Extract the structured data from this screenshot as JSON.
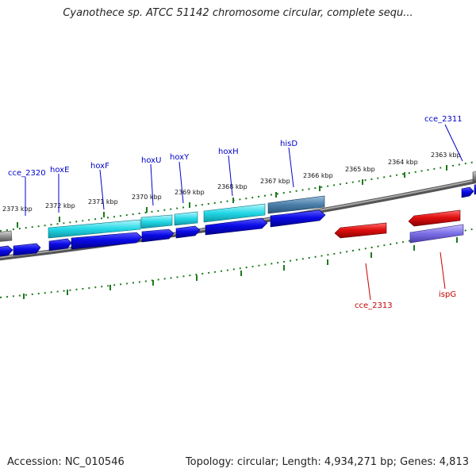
{
  "title": "Cyanothece sp. ATCC 51142 chromosome circular, complete sequ...",
  "footer": {
    "accession": "Accession: NC_010546",
    "topology": "Topology: circular; Length: 4,934,271 bp; Genes: 4,813"
  },
  "colors": {
    "forward_cds": "#0a0ae6",
    "forward_gene": "#22d8e6",
    "forward_gene_alt": "#4a7eaa",
    "reverse_cds": "#e01010",
    "reverse_gene": "#7a6ee6",
    "backbone": "#808080",
    "tick": "#1e7a1e",
    "label_forward": "#0000c8",
    "label_reverse": "#c80000"
  },
  "tick_labels": [
    "2373 kbp",
    "2372 kbp",
    "2371 kbp",
    "2370 kbp",
    "2369 kbp",
    "2368 kbp",
    "2367 kbp",
    "2366 kbp",
    "2365 kbp",
    "2364 kbp",
    "2363 kbp"
  ],
  "gene_labels_forward": [
    "cce_2320",
    "hoxE",
    "hoxF",
    "hoxU",
    "hoxY",
    "hoxH",
    "hisD",
    "cce_2311"
  ],
  "gene_labels_reverse": [
    "cce_2313",
    "ispG"
  ]
}
